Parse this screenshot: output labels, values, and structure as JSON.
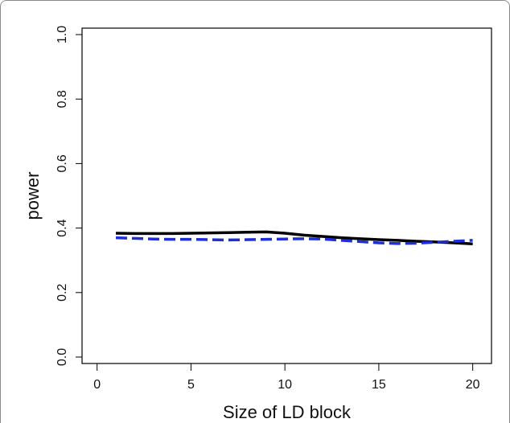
{
  "chart_data": {
    "type": "line",
    "title": "",
    "xlabel": "Size of LD block",
    "ylabel": "power",
    "xlim": [
      -0.8,
      21
    ],
    "ylim": [
      -0.02,
      1.02
    ],
    "xticks": [
      0,
      5,
      10,
      15,
      20
    ],
    "yticks": [
      0.0,
      0.2,
      0.4,
      0.6,
      0.8,
      1.0
    ],
    "xtick_labels": [
      "0",
      "5",
      "10",
      "15",
      "20"
    ],
    "ytick_labels": [
      "0.0",
      "0.2",
      "0.4",
      "0.6",
      "0.8",
      "1.0"
    ],
    "grid": false,
    "legend": "none",
    "series": [
      {
        "color": "#000000",
        "style": "solid",
        "x": [
          1,
          2,
          3,
          4,
          5,
          6,
          7,
          8,
          9,
          10,
          11,
          12,
          13,
          14,
          15,
          16,
          17,
          18,
          19,
          20
        ],
        "y": [
          0.384,
          0.383,
          0.383,
          0.383,
          0.384,
          0.385,
          0.386,
          0.387,
          0.388,
          0.384,
          0.378,
          0.374,
          0.37,
          0.367,
          0.364,
          0.362,
          0.359,
          0.357,
          0.354,
          0.351
        ]
      },
      {
        "color": "#1f2fd6",
        "style": "dashed",
        "x": [
          1,
          2,
          3,
          4,
          5,
          6,
          7,
          8,
          9,
          10,
          11,
          12,
          13,
          14,
          15,
          16,
          17,
          18,
          19,
          20
        ],
        "y": [
          0.37,
          0.368,
          0.366,
          0.365,
          0.365,
          0.364,
          0.363,
          0.364,
          0.365,
          0.366,
          0.367,
          0.366,
          0.362,
          0.358,
          0.354,
          0.352,
          0.353,
          0.356,
          0.359,
          0.362
        ]
      }
    ]
  }
}
